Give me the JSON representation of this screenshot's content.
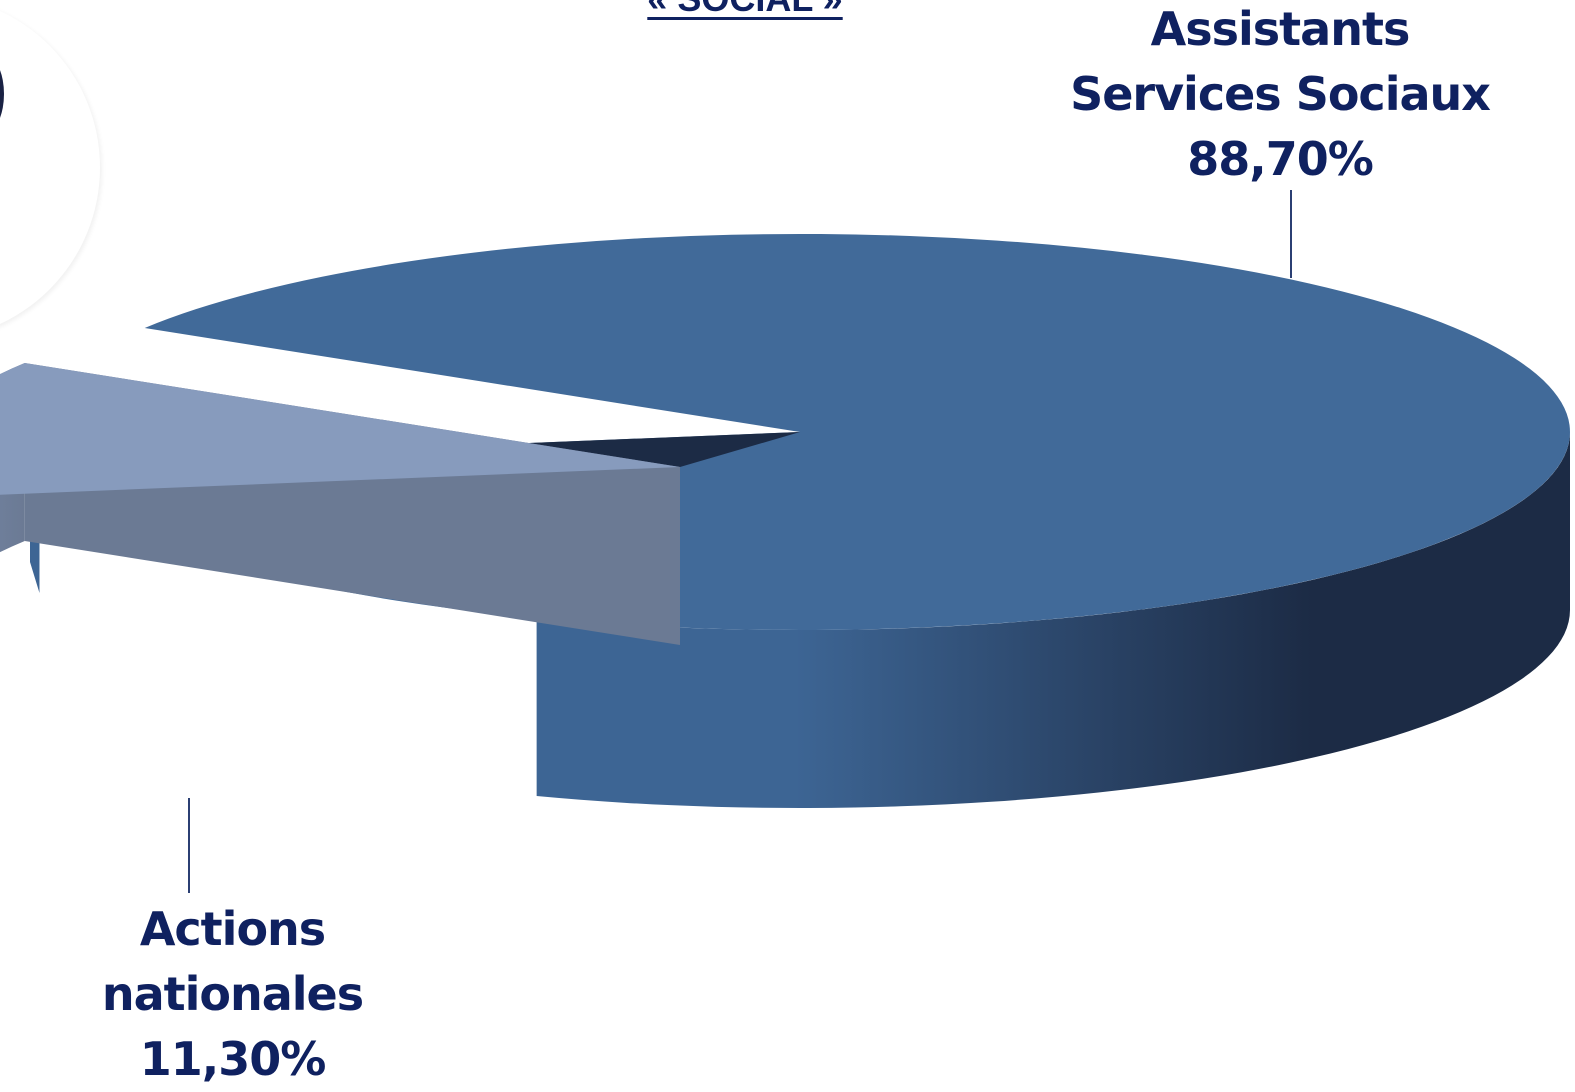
{
  "chart_data": {
    "type": "pie",
    "title": "« SOCIAL »",
    "slices": [
      {
        "name": "Assistants Services Sociaux",
        "label_lines": [
          "Assistants",
          "Services Sociaux"
        ],
        "value_label": "88,70%",
        "value": 88.7
      },
      {
        "name": "Actions nationales",
        "label_lines": [
          "Actions",
          "nationales"
        ],
        "value_label": "11,30%",
        "value": 11.3
      }
    ],
    "colors": {
      "main_top": "#416a99",
      "main_side_light": "#3d6594",
      "main_side_dark": "#1c2b45",
      "exploded_top": "#879bbd",
      "exploded_side": "#7a8eb0",
      "exploded_cut": "#6b7a94",
      "wedge_shadow": "#1c2b45",
      "label_text": "#0f2160",
      "leader_line": "#2b3f73"
    },
    "style": "3d-exploded"
  }
}
